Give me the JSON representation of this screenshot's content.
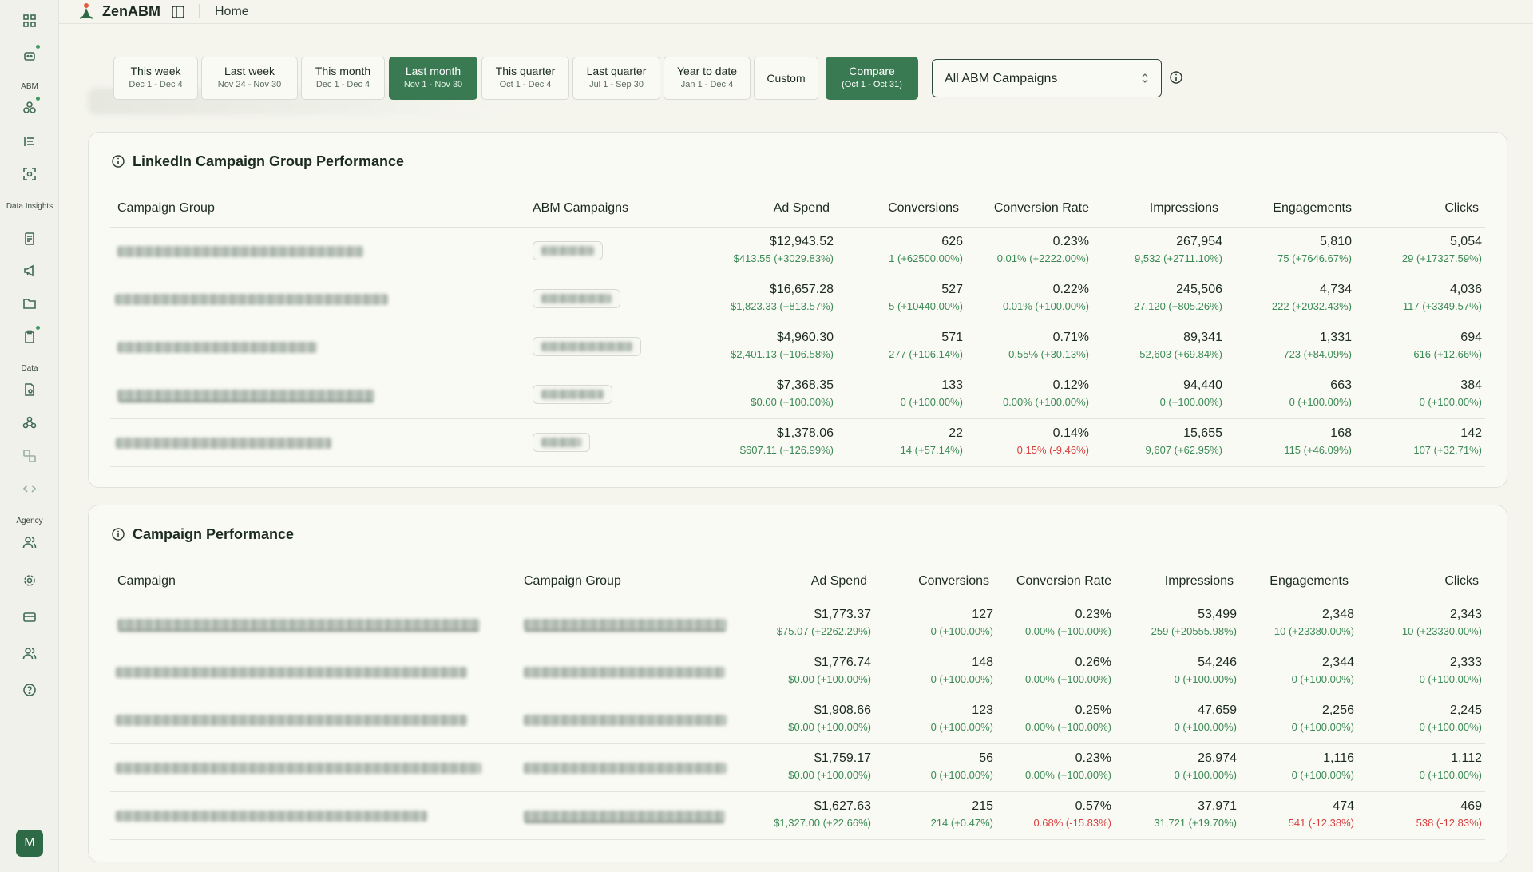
{
  "app": {
    "brand": "ZenABM",
    "breadcrumb": "Home"
  },
  "sidebar": {
    "section_abm": "ABM",
    "section_data_insights": "Data Insights",
    "section_data": "Data",
    "section_agency": "Agency",
    "avatar_initial": "M"
  },
  "filters": {
    "periods": [
      {
        "label": "This week",
        "range": "Dec 1 - Dec 4"
      },
      {
        "label": "Last week",
        "range": "Nov 24 - Nov 30"
      },
      {
        "label": "This month",
        "range": "Dec 1 - Dec 4"
      },
      {
        "label": "Last month",
        "range": "Nov 1 - Nov 30"
      },
      {
        "label": "This quarter",
        "range": "Oct 1 - Dec 4"
      },
      {
        "label": "Last quarter",
        "range": "Jul 1 - Sep 30"
      },
      {
        "label": "Year to date",
        "range": "Jan 1 - Dec 4"
      }
    ],
    "custom_label": "Custom",
    "compare_label": "Compare",
    "compare_range": "(Oct 1 - Oct 31)",
    "selected_period": "Last month",
    "campaign_select": "All ABM Campaigns"
  },
  "group_table": {
    "title": "LinkedIn Campaign Group Performance",
    "headers": [
      "Campaign Group",
      "ABM Campaigns",
      "Ad Spend",
      "Conversions",
      "Conversion Rate",
      "Impressions",
      "Engagements",
      "Clicks"
    ],
    "rows": [
      {
        "ad_spend": "$12,943.52",
        "ad_spend_cmp": "$413.55 (+3029.83%)",
        "conversions": "626",
        "conversions_cmp": "1 (+62500.00%)",
        "conv_rate": "0.23%",
        "conv_rate_cmp": "0.01% (+2222.00%)",
        "impressions": "267,954",
        "impressions_cmp": "9,532 (+2711.10%)",
        "engagements": "5,810",
        "engagements_cmp": "75 (+7646.67%)",
        "clicks": "5,054",
        "clicks_cmp": "29 (+17327.59%)"
      },
      {
        "ad_spend": "$16,657.28",
        "ad_spend_cmp": "$1,823.33 (+813.57%)",
        "conversions": "527",
        "conversions_cmp": "5 (+10440.00%)",
        "conv_rate": "0.22%",
        "conv_rate_cmp": "0.01% (+100.00%)",
        "impressions": "245,506",
        "impressions_cmp": "27,120 (+805.26%)",
        "engagements": "4,734",
        "engagements_cmp": "222 (+2032.43%)",
        "clicks": "4,036",
        "clicks_cmp": "117 (+3349.57%)"
      },
      {
        "ad_spend": "$4,960.30",
        "ad_spend_cmp": "$2,401.13 (+106.58%)",
        "conversions": "571",
        "conversions_cmp": "277 (+106.14%)",
        "conv_rate": "0.71%",
        "conv_rate_cmp": "0.55% (+30.13%)",
        "impressions": "89,341",
        "impressions_cmp": "52,603 (+69.84%)",
        "engagements": "1,331",
        "engagements_cmp": "723 (+84.09%)",
        "clicks": "694",
        "clicks_cmp": "616 (+12.66%)"
      },
      {
        "ad_spend": "$7,368.35",
        "ad_spend_cmp": "$0.00 (+100.00%)",
        "conversions": "133",
        "conversions_cmp": "0 (+100.00%)",
        "conv_rate": "0.12%",
        "conv_rate_cmp": "0.00% (+100.00%)",
        "impressions": "94,440",
        "impressions_cmp": "0 (+100.00%)",
        "engagements": "663",
        "engagements_cmp": "0 (+100.00%)",
        "clicks": "384",
        "clicks_cmp": "0 (+100.00%)"
      },
      {
        "ad_spend": "$1,378.06",
        "ad_spend_cmp": "$607.11 (+126.99%)",
        "conversions": "22",
        "conversions_cmp": "14 (+57.14%)",
        "conv_rate": "0.14%",
        "conv_rate_cmp": "0.15% (-9.46%)",
        "impressions": "15,655",
        "impressions_cmp": "9,607 (+62.95%)",
        "engagements": "168",
        "engagements_cmp": "115 (+46.09%)",
        "clicks": "142",
        "clicks_cmp": "107 (+32.71%)"
      }
    ]
  },
  "campaign_table": {
    "title": "Campaign Performance",
    "headers": [
      "Campaign",
      "Campaign Group",
      "Ad Spend",
      "Conversions",
      "Conversion Rate",
      "Impressions",
      "Engagements",
      "Clicks"
    ],
    "rows": [
      {
        "ad_spend": "$1,773.37",
        "ad_spend_cmp": "$75.07 (+2262.29%)",
        "conversions": "127",
        "conversions_cmp": "0 (+100.00%)",
        "conv_rate": "0.23%",
        "conv_rate_cmp": "0.00% (+100.00%)",
        "impressions": "53,499",
        "impressions_cmp": "259 (+20555.98%)",
        "engagements": "2,348",
        "engagements_cmp": "10 (+23380.00%)",
        "clicks": "2,343",
        "clicks_cmp": "10 (+23330.00%)"
      },
      {
        "ad_spend": "$1,776.74",
        "ad_spend_cmp": "$0.00 (+100.00%)",
        "conversions": "148",
        "conversions_cmp": "0 (+100.00%)",
        "conv_rate": "0.26%",
        "conv_rate_cmp": "0.00% (+100.00%)",
        "impressions": "54,246",
        "impressions_cmp": "0 (+100.00%)",
        "engagements": "2,344",
        "engagements_cmp": "0 (+100.00%)",
        "clicks": "2,333",
        "clicks_cmp": "0 (+100.00%)"
      },
      {
        "ad_spend": "$1,908.66",
        "ad_spend_cmp": "$0.00 (+100.00%)",
        "conversions": "123",
        "conversions_cmp": "0 (+100.00%)",
        "conv_rate": "0.25%",
        "conv_rate_cmp": "0.00% (+100.00%)",
        "impressions": "47,659",
        "impressions_cmp": "0 (+100.00%)",
        "engagements": "2,256",
        "engagements_cmp": "0 (+100.00%)",
        "clicks": "2,245",
        "clicks_cmp": "0 (+100.00%)"
      },
      {
        "ad_spend": "$1,759.17",
        "ad_spend_cmp": "$0.00 (+100.00%)",
        "conversions": "56",
        "conversions_cmp": "0 (+100.00%)",
        "conv_rate": "0.23%",
        "conv_rate_cmp": "0.00% (+100.00%)",
        "impressions": "26,974",
        "impressions_cmp": "0 (+100.00%)",
        "engagements": "1,116",
        "engagements_cmp": "0 (+100.00%)",
        "clicks": "1,112",
        "clicks_cmp": "0 (+100.00%)"
      },
      {
        "ad_spend": "$1,627.63",
        "ad_spend_cmp": "$1,327.00 (+22.66%)",
        "conversions": "215",
        "conversions_cmp": "214 (+0.47%)",
        "conv_rate": "0.57%",
        "conv_rate_cmp": "0.68% (-15.83%)",
        "impressions": "37,971",
        "impressions_cmp": "31,721 (+19.70%)",
        "engagements": "474",
        "engagements_cmp": "541 (-12.38%)",
        "clicks": "469",
        "clicks_cmp": "538 (-12.83%)"
      }
    ]
  },
  "colors": {
    "accent": "#3a7a52",
    "positive": "#3a8a55",
    "negative": "#d84040",
    "background": "#f5f5ee"
  },
  "icons": [
    "dashboard-icon",
    "chatbot-icon",
    "companies-icon",
    "list-icon",
    "scan-icon",
    "document-icon",
    "megaphone-icon",
    "folder-icon",
    "clipboard-icon",
    "file-search-icon",
    "webhook-icon",
    "integration-icon",
    "code-icon",
    "users-icon",
    "gear-icon",
    "credit-card-icon",
    "team-icon",
    "help-icon",
    "info-icon"
  ]
}
